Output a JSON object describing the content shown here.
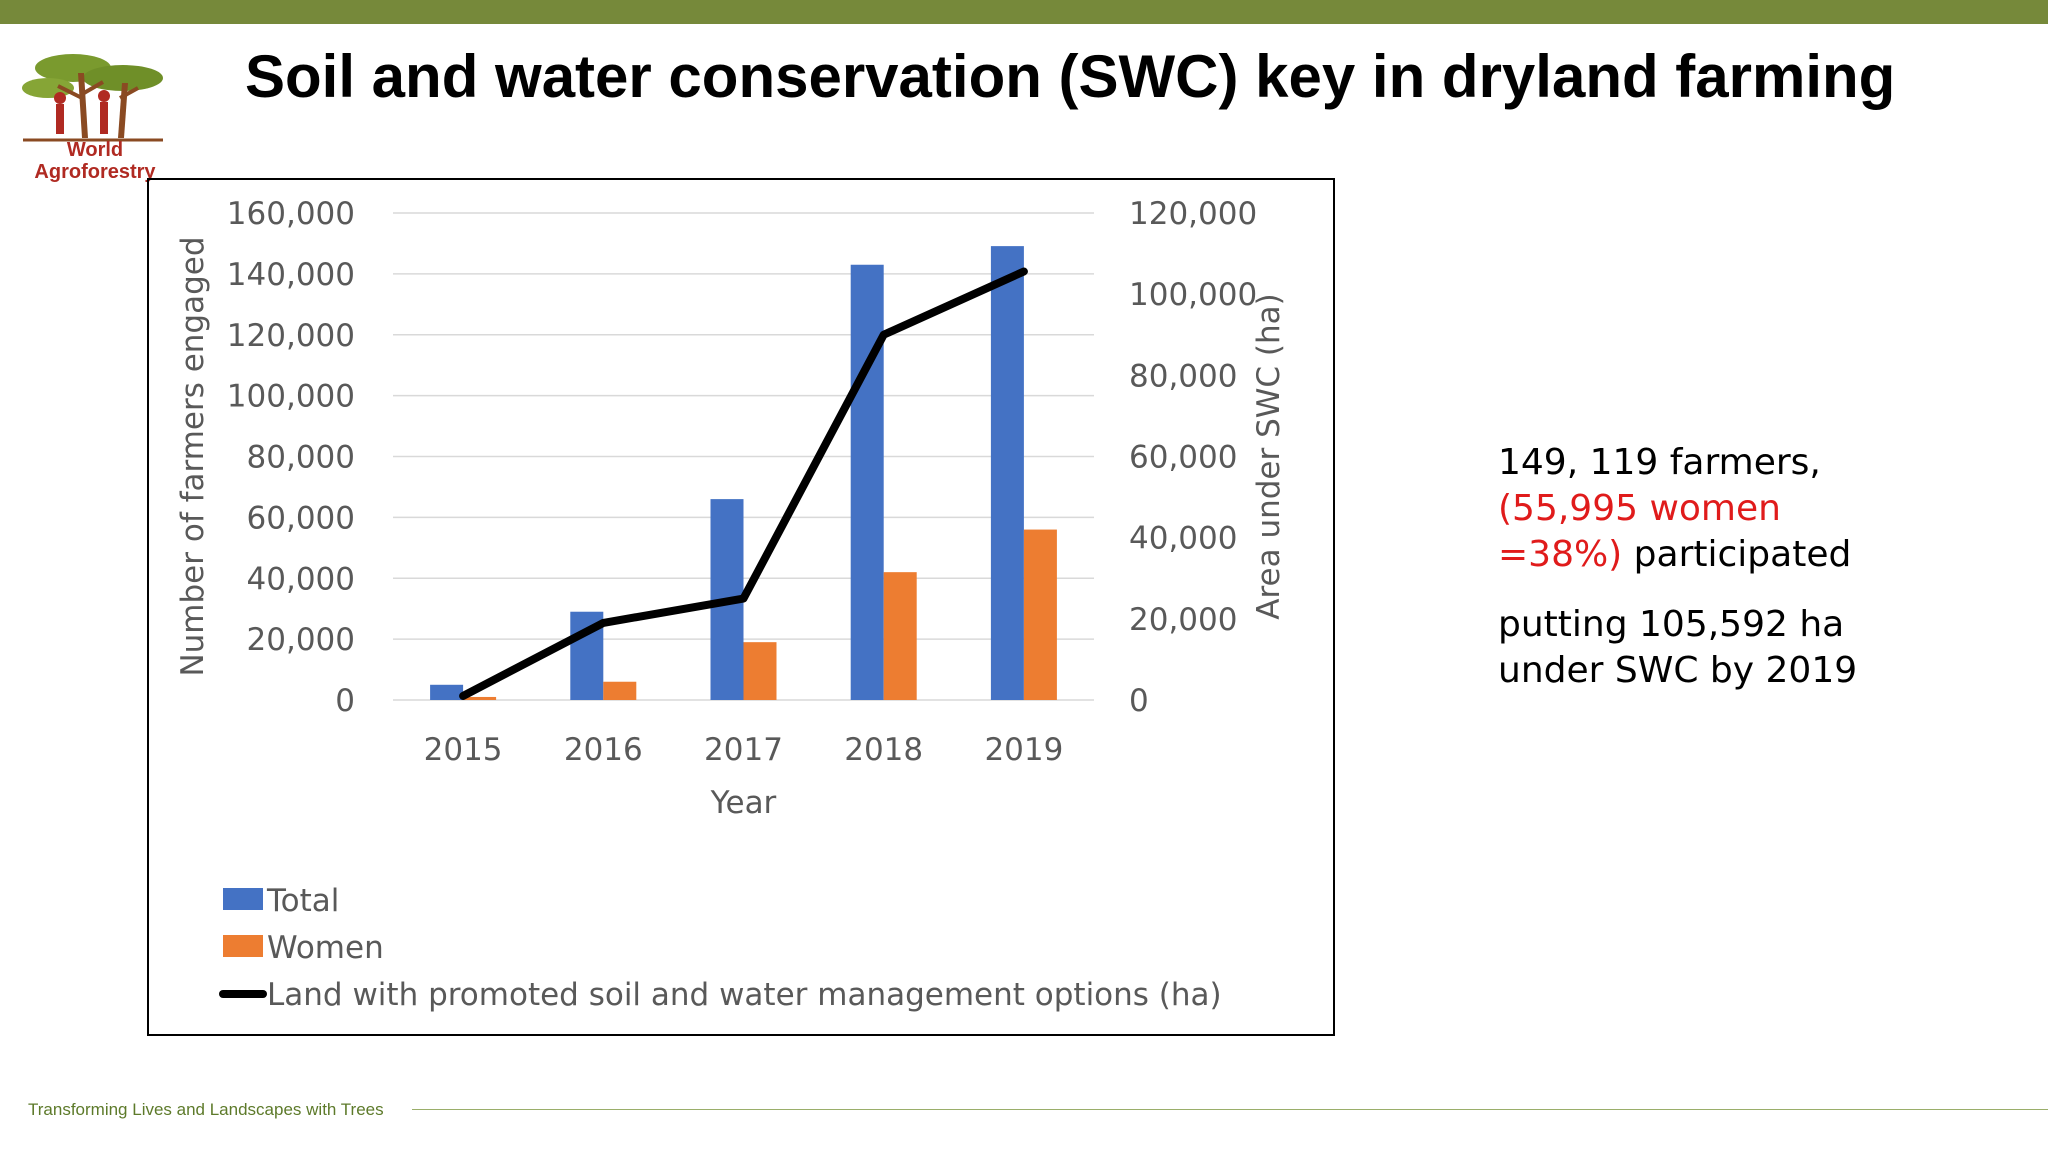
{
  "slide": {
    "title": "Soil and water conservation (SWC) key in dryland farming",
    "logo": {
      "line1": "World",
      "line2": "Agroforestry",
      "icon": "acacia-trees-logo-icon"
    },
    "footer": "Transforming Lives and Landscapes with Trees",
    "colors": {
      "topbar": "#76893a",
      "accent_red": "#e01b1b",
      "brand_red": "#b02a22"
    }
  },
  "side_text": {
    "line1": "149, 119 farmers,",
    "line2_red": "(55,995 women",
    "line3_red": "=38%)",
    "line3_rest": " participated",
    "para2": "putting 105,592 ha under SWC by 2019"
  },
  "chart_data": {
    "type": "bar",
    "categories": [
      "2015",
      "2016",
      "2017",
      "2018",
      "2019"
    ],
    "xlabel": "Year",
    "ylabel": "Number of farmers engaged",
    "y2label": "Area under SWC (ha)",
    "ylim": [
      0,
      160000
    ],
    "y2lim": [
      0,
      120000
    ],
    "yticks": [
      "160,000",
      "140,000",
      "120,000",
      "100,000",
      "80,000",
      "60,000",
      "40,000",
      "20,000",
      "0"
    ],
    "y2ticks": [
      "120,000",
      "100,000",
      "80,000",
      "60,000",
      "40,000",
      "20,000",
      "0"
    ],
    "grid": true,
    "legend_position": "bottom-left",
    "series": [
      {
        "name": "Total",
        "type": "bar",
        "axis": "left",
        "color": "#4472c4",
        "values": [
          5000,
          29000,
          66000,
          143000,
          149119
        ]
      },
      {
        "name": "Women",
        "type": "bar",
        "axis": "left",
        "color": "#ed7d31",
        "values": [
          1000,
          6000,
          19000,
          42000,
          55995
        ]
      },
      {
        "name": "Land with promoted soil and water management options (ha)",
        "type": "line",
        "axis": "right",
        "color": "#000000",
        "values": [
          1000,
          19000,
          25000,
          90000,
          105592
        ]
      }
    ]
  }
}
